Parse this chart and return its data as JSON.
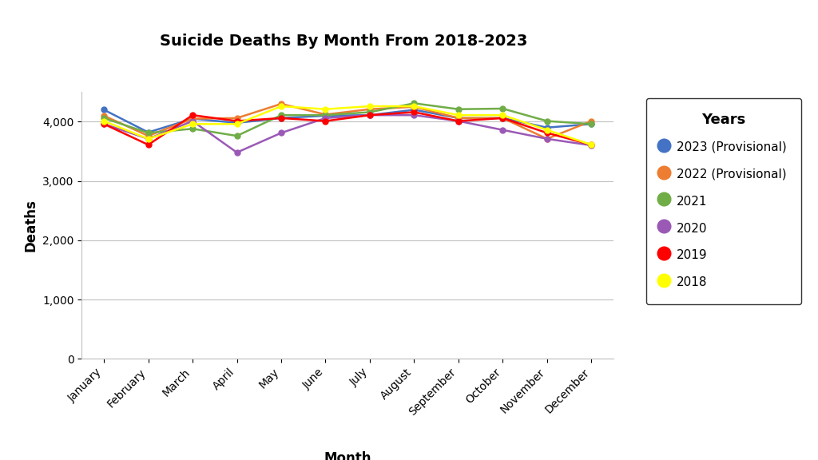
{
  "title": "Suicide Deaths By Month From 2018-2023",
  "xlabel": "Month",
  "ylabel": "Deaths",
  "months": [
    "January",
    "February",
    "March",
    "April",
    "May",
    "June",
    "July",
    "August",
    "September",
    "October",
    "November",
    "December"
  ],
  "series": [
    {
      "label": "2023 (Provisional)",
      "color": "#4472C4",
      "data": [
        4200,
        3820,
        4050,
        3980,
        4060,
        4100,
        4110,
        4200,
        4060,
        4060,
        3900,
        3960
      ]
    },
    {
      "label": "2022 (Provisional)",
      "color": "#ED7D31",
      "data": [
        4100,
        3760,
        4050,
        4060,
        4300,
        4120,
        4210,
        4250,
        4060,
        4060,
        3710,
        4010
      ]
    },
    {
      "label": "2021",
      "color": "#70AD47",
      "data": [
        4060,
        3810,
        3880,
        3760,
        4110,
        4110,
        4160,
        4310,
        4210,
        4220,
        4010,
        3960
      ]
    },
    {
      "label": "2020",
      "color": "#9B59B6",
      "data": [
        3960,
        3710,
        4010,
        3480,
        3810,
        4060,
        4110,
        4110,
        4010,
        3860,
        3710,
        3600
      ]
    },
    {
      "label": "2019",
      "color": "#FF0000",
      "data": [
        3960,
        3610,
        4110,
        4010,
        4060,
        4010,
        4110,
        4160,
        4010,
        4060,
        3810,
        3610
      ]
    },
    {
      "label": "2018",
      "color": "#FFFF00",
      "data": [
        4010,
        3710,
        3960,
        3960,
        4260,
        4210,
        4260,
        4260,
        4110,
        4110,
        3860,
        3610
      ]
    }
  ],
  "ylim": [
    0,
    4500
  ],
  "yticks": [
    0,
    1000,
    2000,
    3000,
    4000
  ],
  "background_color": "#ffffff",
  "grid_color": "#c0c0c0",
  "title_fontsize": 14,
  "axis_label_fontsize": 12,
  "tick_fontsize": 10,
  "legend_title": "Years",
  "legend_title_fontsize": 13,
  "legend_fontsize": 11
}
